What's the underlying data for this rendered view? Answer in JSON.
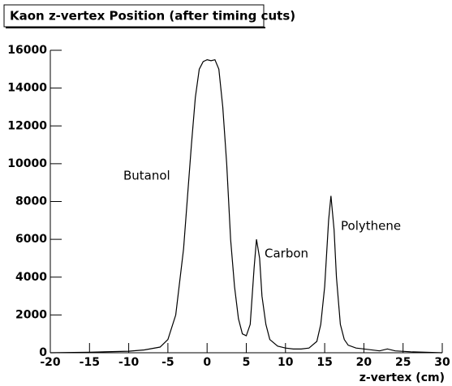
{
  "chart_data": {
    "type": "line",
    "title": "Kaon z-vertex Position (after timing cuts)",
    "x_label": "z-vertex (cm)",
    "annotations": [
      "Butanol",
      "Carbon",
      "Polythene"
    ],
    "color": "#000000",
    "x": [
      -20,
      -15,
      -10,
      -8,
      -6,
      -5,
      -4,
      -3,
      -2,
      -1.5,
      -1,
      -0.5,
      0,
      0.5,
      1,
      1.5,
      2,
      2.5,
      3,
      3.5,
      4,
      4.5,
      5,
      5.5,
      6,
      6.3,
      6.7,
      7,
      7.5,
      8,
      9,
      10,
      11,
      12,
      13,
      14,
      14.5,
      15,
      15.5,
      15.8,
      16.2,
      16.5,
      17,
      17.5,
      18,
      19,
      20,
      22,
      23,
      24,
      26,
      30
    ],
    "values": [
      0,
      30,
      80,
      150,
      300,
      700,
      2000,
      5500,
      11000,
      13500,
      15000,
      15400,
      15500,
      15450,
      15500,
      15000,
      13000,
      10000,
      6000,
      3500,
      1800,
      1000,
      900,
      1500,
      4500,
      6000,
      5000,
      3000,
      1500,
      700,
      350,
      250,
      200,
      200,
      250,
      600,
      1500,
      3500,
      7000,
      8300,
      6500,
      4000,
      1500,
      700,
      400,
      250,
      200,
      100,
      200,
      100,
      50,
      0
    ],
    "xlim": [
      -20,
      30
    ],
    "xticks": [
      -20,
      -15,
      -10,
      -5,
      0,
      5,
      10,
      15,
      20,
      25,
      30
    ],
    "ylim": [
      0,
      16000
    ],
    "yticks": [
      0,
      2000,
      4000,
      6000,
      8000,
      10000,
      12000,
      14000,
      16000
    ]
  }
}
